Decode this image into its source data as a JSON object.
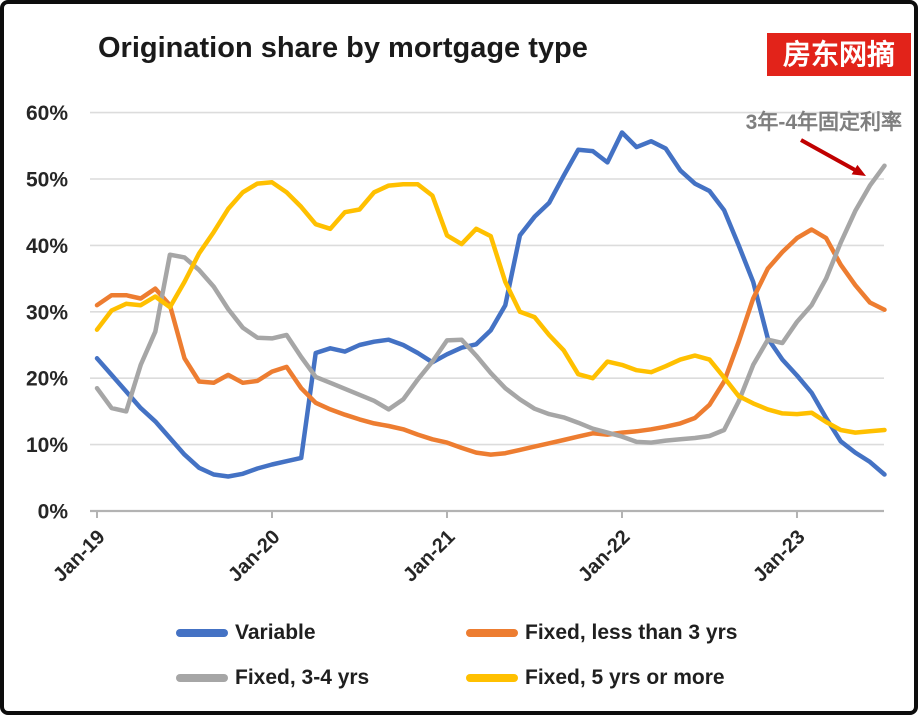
{
  "header": {
    "badge": {
      "text": "房东网摘",
      "bg_color": "#e2231a",
      "text_color": "#ffffff"
    }
  },
  "annotation": {
    "text": "3年-4年固定利率",
    "color": "#7f7f7f",
    "arrow_color": "#c00000"
  },
  "chart_data": {
    "type": "line",
    "title": "Origination share by mortgage type",
    "xlabel": "",
    "ylabel": "",
    "ylim": [
      0,
      60
    ],
    "grid": "horizontal",
    "grid_color": "#dcdcdc",
    "axis_color": "#b3b3b3",
    "legend_position": "bottom",
    "y_ticks": [
      0,
      10,
      20,
      30,
      40,
      50,
      60
    ],
    "y_tick_labels": [
      "0%",
      "10%",
      "20%",
      "30%",
      "40%",
      "50%",
      "60%"
    ],
    "x_tick_labels": [
      "Jan-19",
      "Jan-20",
      "Jan-21",
      "Jan-22",
      "Jan-23"
    ],
    "x": [
      "Jan-19",
      "Feb-19",
      "Mar-19",
      "Apr-19",
      "May-19",
      "Jun-19",
      "Jul-19",
      "Aug-19",
      "Sep-19",
      "Oct-19",
      "Nov-19",
      "Dec-19",
      "Jan-20",
      "Feb-20",
      "Mar-20",
      "Apr-20",
      "May-20",
      "Jun-20",
      "Jul-20",
      "Aug-20",
      "Sep-20",
      "Oct-20",
      "Nov-20",
      "Dec-20",
      "Jan-21",
      "Feb-21",
      "Mar-21",
      "Apr-21",
      "May-21",
      "Jun-21",
      "Jul-21",
      "Aug-21",
      "Sep-21",
      "Oct-21",
      "Nov-21",
      "Dec-21",
      "Jan-22",
      "Feb-22",
      "Mar-22",
      "Apr-22",
      "May-22",
      "Jun-22",
      "Jul-22",
      "Aug-22",
      "Sep-22",
      "Oct-22",
      "Nov-22",
      "Dec-22",
      "Jan-23",
      "Feb-23",
      "Mar-23",
      "Apr-23",
      "May-23",
      "Jun-23",
      "Jul-23"
    ],
    "series": [
      {
        "name": "Variable",
        "color": "#4472c4",
        "values": [
          23,
          20.5,
          18,
          15.5,
          13.5,
          11,
          8.5,
          6.5,
          5.5,
          5.2,
          5.6,
          6.4,
          7,
          7.5,
          8,
          23.8,
          24.5,
          24,
          25,
          25.5,
          25.8,
          25,
          23.8,
          22.4,
          23.6,
          24.6,
          25.1,
          27.2,
          31,
          41.5,
          44.3,
          46.4,
          50.5,
          54.4,
          54.2,
          52.5,
          57,
          54.8,
          55.7,
          54.6,
          51.3,
          49.3,
          48.2,
          45.3,
          40,
          34.5,
          26,
          22.8,
          20.4,
          17.8,
          14,
          10.5,
          8.8,
          7.4,
          5.5
        ]
      },
      {
        "name": "Fixed, less than 3 yrs",
        "color": "#ed7d31",
        "values": [
          31,
          32.5,
          32.5,
          32,
          33.5,
          31,
          23,
          19.5,
          19.3,
          20.5,
          19.3,
          19.6,
          21,
          21.7,
          18.5,
          16.3,
          15.3,
          14.5,
          13.8,
          13.2,
          12.8,
          12.3,
          11.5,
          10.8,
          10.3,
          9.5,
          8.8,
          8.5,
          8.7,
          9.2,
          9.7,
          10.2,
          10.7,
          11.2,
          11.7,
          11.5,
          11.8,
          12,
          12.3,
          12.7,
          13.2,
          14,
          16,
          19.5,
          25.5,
          32,
          36.5,
          39,
          41.1,
          42.4,
          41.1,
          37.1,
          34,
          31.4,
          30.3
        ]
      },
      {
        "name": "Fixed, 3-4 yrs",
        "color": "#a6a6a6",
        "values": [
          18.5,
          15.5,
          15,
          22,
          27,
          38.6,
          38.2,
          36.3,
          33.8,
          30.4,
          27.6,
          26.1,
          26,
          26.5,
          23.2,
          20.2,
          19.3,
          18.4,
          17.5,
          16.6,
          15.3,
          16.8,
          19.8,
          22.5,
          25.7,
          25.8,
          23.4,
          20.8,
          18.5,
          16.8,
          15.4,
          14.6,
          14.1,
          13.3,
          12.4,
          11.8,
          11.2,
          10.4,
          10.3,
          10.6,
          10.8,
          11,
          11.3,
          12.2,
          16.5,
          22,
          25.8,
          25.3,
          28.5,
          31,
          35,
          40.4,
          45.2,
          49,
          52
        ]
      },
      {
        "name": "Fixed, 5 yrs or more",
        "color": "#ffc000",
        "values": [
          27.3,
          30.2,
          31.2,
          31,
          32.3,
          30.7,
          34.5,
          38.8,
          42,
          45.5,
          48,
          49.3,
          49.5,
          48,
          45.8,
          43.2,
          42.5,
          45,
          45.4,
          48,
          49,
          49.2,
          49.2,
          47.5,
          41.5,
          40.2,
          42.5,
          41.4,
          34.5,
          30,
          29.2,
          26.5,
          24.2,
          20.6,
          20,
          22.5,
          22,
          21.2,
          20.9,
          21.8,
          22.8,
          23.4,
          22.8,
          20.1,
          17.3,
          16.2,
          15.3,
          14.7,
          14.6,
          14.8,
          13.4,
          12.2,
          11.8,
          12,
          12.2
        ]
      }
    ]
  }
}
